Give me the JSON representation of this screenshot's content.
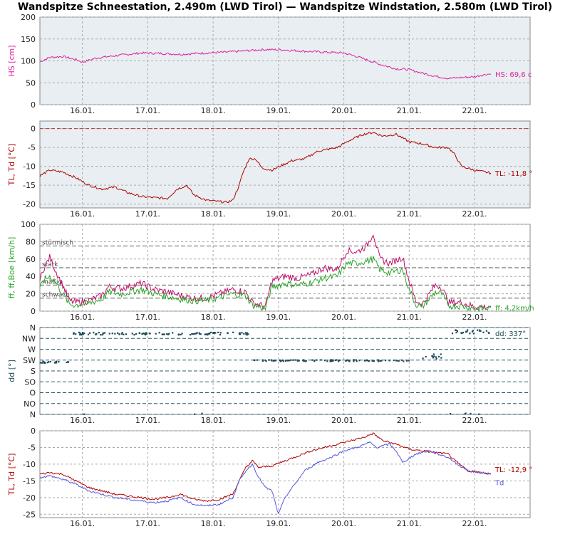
{
  "title": "Wandspitze Schneestation, 2.490m (LWD Tirol) — Wandspitze Windstation, 2.580m (LWD Tirol)",
  "x_ticks": [
    "16.01.",
    "17.01.",
    "18.01.",
    "19.01.",
    "20.01.",
    "21.01.",
    "22.01."
  ],
  "colors": {
    "hs": "#e0209a",
    "tl": "#b00000",
    "td": "#5555dd",
    "ff": "#2aa52a",
    "boe": "#c0106a",
    "dd": "#1b4a5a",
    "bg1": "#e8eef2"
  },
  "chart_data": [
    {
      "type": "line",
      "ylabel": "HS [cm]",
      "ylim": [
        0,
        200
      ],
      "yticks": [
        0,
        50,
        100,
        150,
        200
      ],
      "xlim": [
        15.45,
        22.95
      ],
      "series": [
        {
          "name": "HS",
          "end_label": "HS: 69,6 c",
          "x": [
            15.45,
            15.6,
            15.8,
            16.0,
            16.1,
            16.3,
            16.5,
            16.8,
            17.0,
            17.3,
            17.6,
            18.0,
            18.3,
            18.6,
            18.9,
            19.2,
            19.5,
            19.8,
            20.1,
            20.3,
            20.5,
            20.7,
            20.9,
            21.1,
            21.3,
            21.5,
            21.7,
            21.9,
            22.1,
            22.3,
            22.35
          ],
          "y": [
            98,
            108,
            110,
            103,
            97,
            106,
            110,
            115,
            118,
            117,
            115,
            118,
            120,
            123,
            126,
            125,
            122,
            120,
            118,
            110,
            100,
            90,
            82,
            80,
            72,
            65,
            60,
            62,
            64,
            70,
            69.6
          ]
        }
      ]
    },
    {
      "type": "line",
      "ylabel": "TL, Td [°C]",
      "ylim": [
        -21,
        2
      ],
      "yticks": [
        0,
        -5,
        -10,
        -15,
        -20
      ],
      "xlim": [
        15.45,
        22.95
      ],
      "series": [
        {
          "name": "TL",
          "end_label": "TL: -11,8 °",
          "x": [
            15.45,
            15.6,
            15.8,
            16.0,
            16.2,
            16.4,
            16.6,
            16.8,
            17.0,
            17.2,
            17.4,
            17.55,
            17.7,
            17.8,
            18.0,
            18.3,
            18.4,
            18.5,
            18.55,
            18.65,
            18.75,
            18.85,
            19.0,
            19.3,
            19.5,
            19.7,
            20.0,
            20.2,
            20.4,
            20.55,
            20.7,
            20.9,
            21.1,
            21.3,
            21.5,
            21.7,
            21.8,
            21.9,
            22.1,
            22.35
          ],
          "y": [
            -12.5,
            -11,
            -11.5,
            -13,
            -15,
            -16,
            -15.5,
            -17,
            -18,
            -18.3,
            -18.5,
            -16,
            -15,
            -17.5,
            -19,
            -19.5,
            -19,
            -15,
            -12,
            -8,
            -8,
            -10.5,
            -11,
            -8.5,
            -8,
            -6,
            -5,
            -3,
            -1.5,
            -1.0,
            -2,
            -1.5,
            -3.5,
            -4,
            -5,
            -5,
            -7,
            -10,
            -11,
            -11.8
          ]
        }
      ]
    },
    {
      "type": "line",
      "ylabel": "ff, ff,Boe [km/h]",
      "ylim": [
        0,
        100
      ],
      "yticks": [
        0,
        20,
        40,
        60,
        80,
        100
      ],
      "xlim": [
        15.45,
        22.95
      ],
      "annotations": [
        {
          "text": "stürmisch",
          "y": 75
        },
        {
          "text": "stark",
          "y": 50
        },
        {
          "text": "mäßig",
          "y": 30
        },
        {
          "text": "schwach",
          "y": 15
        }
      ],
      "series": [
        {
          "name": "ff,Boe",
          "x": [
            15.45,
            15.5,
            15.6,
            15.7,
            15.8,
            15.9,
            16.0,
            16.2,
            16.4,
            16.5,
            16.7,
            17.0,
            17.2,
            17.4,
            17.6,
            17.8,
            18.0,
            18.2,
            18.4,
            18.6,
            18.7,
            18.9,
            19.0,
            19.2,
            19.4,
            19.6,
            19.8,
            20.0,
            20.15,
            20.3,
            20.45,
            20.55,
            20.65,
            20.8,
            21.0,
            21.1,
            21.2,
            21.3,
            21.5,
            21.6,
            21.7,
            21.9,
            22.1,
            22.3,
            22.35
          ],
          "y": [
            35,
            48,
            62,
            45,
            30,
            12,
            10,
            12,
            18,
            28,
            26,
            32,
            25,
            22,
            18,
            15,
            15,
            20,
            25,
            22,
            10,
            5,
            35,
            40,
            38,
            42,
            50,
            48,
            70,
            68,
            75,
            90,
            60,
            55,
            62,
            35,
            12,
            8,
            30,
            28,
            10,
            10,
            5,
            5,
            6
          ]
        },
        {
          "name": "ff",
          "end_label": "ff: 4,2km/h",
          "x": [
            15.45,
            15.5,
            15.6,
            15.7,
            15.8,
            15.9,
            16.0,
            16.2,
            16.4,
            16.5,
            16.7,
            17.0,
            17.2,
            17.4,
            17.6,
            17.8,
            18.0,
            18.2,
            18.4,
            18.6,
            18.7,
            18.9,
            19.0,
            19.2,
            19.4,
            19.6,
            19.8,
            20.0,
            20.15,
            20.3,
            20.45,
            20.55,
            20.65,
            20.8,
            21.0,
            21.1,
            21.2,
            21.3,
            21.5,
            21.6,
            21.7,
            21.9,
            22.1,
            22.3,
            22.35
          ],
          "y": [
            25,
            35,
            40,
            32,
            20,
            8,
            7,
            9,
            14,
            22,
            20,
            25,
            20,
            17,
            14,
            12,
            12,
            16,
            20,
            18,
            7,
            3,
            28,
            32,
            30,
            33,
            38,
            40,
            55,
            55,
            58,
            60,
            48,
            44,
            48,
            25,
            8,
            5,
            22,
            20,
            6,
            6,
            3,
            3,
            4.2
          ]
        }
      ]
    },
    {
      "type": "scatter",
      "ylabel": "dd [°]",
      "ylim": [
        0,
        360
      ],
      "ytick_labels": [
        "N",
        "NW",
        "W",
        "SW",
        "S",
        "SO",
        "O",
        "NO",
        "N"
      ],
      "ytick_values": [
        360,
        315,
        270,
        225,
        180,
        135,
        90,
        45,
        0
      ],
      "xlim": [
        15.45,
        22.95
      ],
      "series": [
        {
          "name": "dd",
          "end_label": "dd: 337°",
          "segments": [
            {
              "x0": 15.45,
              "x1": 15.95,
              "y0": 213,
              "y1": 220
            },
            {
              "x0": 15.95,
              "x1": 18.65,
              "y0": 330,
              "y1": 340
            },
            {
              "x0": 18.7,
              "x1": 21.1,
              "y0": 220,
              "y1": 226
            },
            {
              "x0": 21.3,
              "x1": 21.6,
              "y0": 230,
              "y1": 250
            },
            {
              "x0": 21.75,
              "x1": 22.35,
              "y0": 335,
              "y1": 350
            }
          ]
        }
      ]
    },
    {
      "type": "line",
      "ylabel": "TL, Td [°C]",
      "ylim": [
        -26,
        0
      ],
      "yticks": [
        0,
        -5,
        -10,
        -15,
        -20,
        -25
      ],
      "xlim": [
        15.45,
        22.95
      ],
      "series": [
        {
          "name": "TL",
          "end_label": "TL: -12,9 °",
          "x": [
            15.45,
            15.6,
            15.8,
            16.0,
            16.2,
            16.4,
            16.6,
            16.8,
            17.0,
            17.2,
            17.4,
            17.6,
            17.8,
            18.0,
            18.2,
            18.4,
            18.5,
            18.6,
            18.7,
            18.8,
            19.0,
            19.2,
            19.4,
            19.6,
            19.8,
            20.0,
            20.2,
            20.4,
            20.55,
            20.7,
            20.9,
            21.1,
            21.3,
            21.5,
            21.7,
            21.8,
            22.0,
            22.2,
            22.35
          ],
          "y": [
            -13,
            -12.5,
            -13,
            -15,
            -17,
            -18,
            -19,
            -19.5,
            -20,
            -20.5,
            -20,
            -19,
            -20.5,
            -21,
            -20.5,
            -19,
            -15,
            -11,
            -9,
            -11,
            -10.5,
            -9,
            -7.5,
            -6,
            -5,
            -4,
            -3,
            -2,
            -0.8,
            -3,
            -4,
            -5.5,
            -6,
            -6.5,
            -7,
            -9,
            -12,
            -12.5,
            -12.9
          ]
        },
        {
          "name": "Td",
          "end_label": "Td",
          "x": [
            15.45,
            15.6,
            15.8,
            16.0,
            16.2,
            16.4,
            16.6,
            16.8,
            17.0,
            17.2,
            17.4,
            17.6,
            17.8,
            18.0,
            18.2,
            18.4,
            18.5,
            18.6,
            18.7,
            18.8,
            18.9,
            19.0,
            19.1,
            19.2,
            19.35,
            19.5,
            19.7,
            19.9,
            20.1,
            20.3,
            20.5,
            20.6,
            20.8,
            20.9,
            21.0,
            21.2,
            21.4,
            21.7,
            21.8,
            22.0,
            22.2,
            22.35
          ],
          "y": [
            -14,
            -13.5,
            -14.5,
            -16,
            -18,
            -19,
            -20,
            -20.5,
            -21,
            -21.5,
            -21,
            -20,
            -22,
            -22.5,
            -22,
            -20,
            -15,
            -12,
            -10,
            -14,
            -17,
            -18,
            -25,
            -20,
            -16,
            -12,
            -9.5,
            -8,
            -6,
            -5,
            -3.5,
            -5,
            -4,
            -6,
            -9.5,
            -7,
            -6,
            -8,
            -9.5,
            -12,
            -12.5,
            -13
          ]
        }
      ]
    }
  ]
}
